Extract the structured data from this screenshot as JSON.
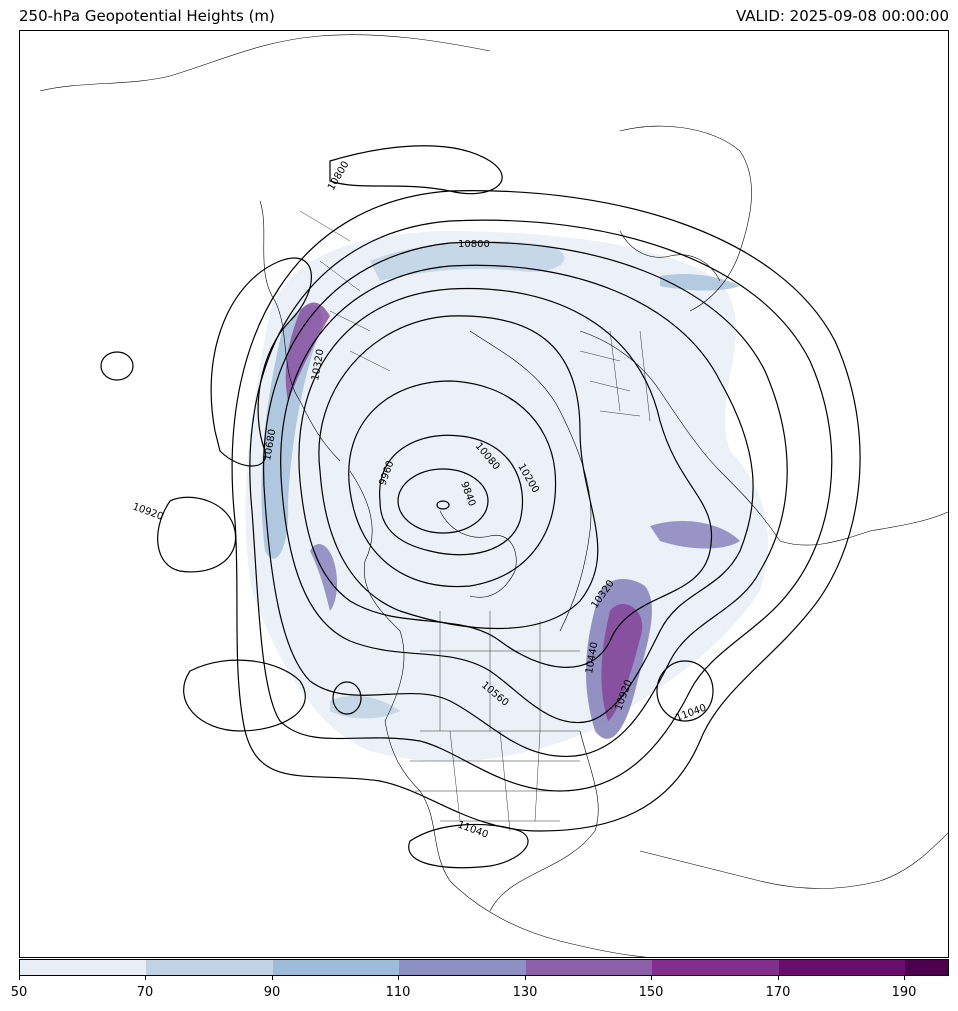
{
  "header": {
    "title": "250-hPa Geopotential Heights (m)",
    "valid": "VALID: 2025-09-08 00:00:00"
  },
  "contour_labels": [
    "10800",
    "10680",
    "10320",
    "10920",
    "10800",
    "9840",
    "9960",
    "10080",
    "10200",
    "10320",
    "10440",
    "10920",
    "11040",
    "10560",
    "11040",
    "10560"
  ],
  "colorbar": {
    "ticks": [
      "50",
      "70",
      "90",
      "110",
      "130",
      "150",
      "170",
      "190"
    ],
    "colors": [
      "#e8eef6",
      "#c0d3e4",
      "#9ebcd9",
      "#8c90c2",
      "#8c5fa9",
      "#832d8d",
      "#6a0c6b",
      "#4d004b"
    ]
  },
  "colors": {
    "contour": "#000000",
    "coast": "#000000",
    "shade_light": "#dce8f2",
    "shade_mid": "#a9c3dc",
    "shade_dark": "#8a85bd",
    "shade_purple": "#874a9c"
  }
}
